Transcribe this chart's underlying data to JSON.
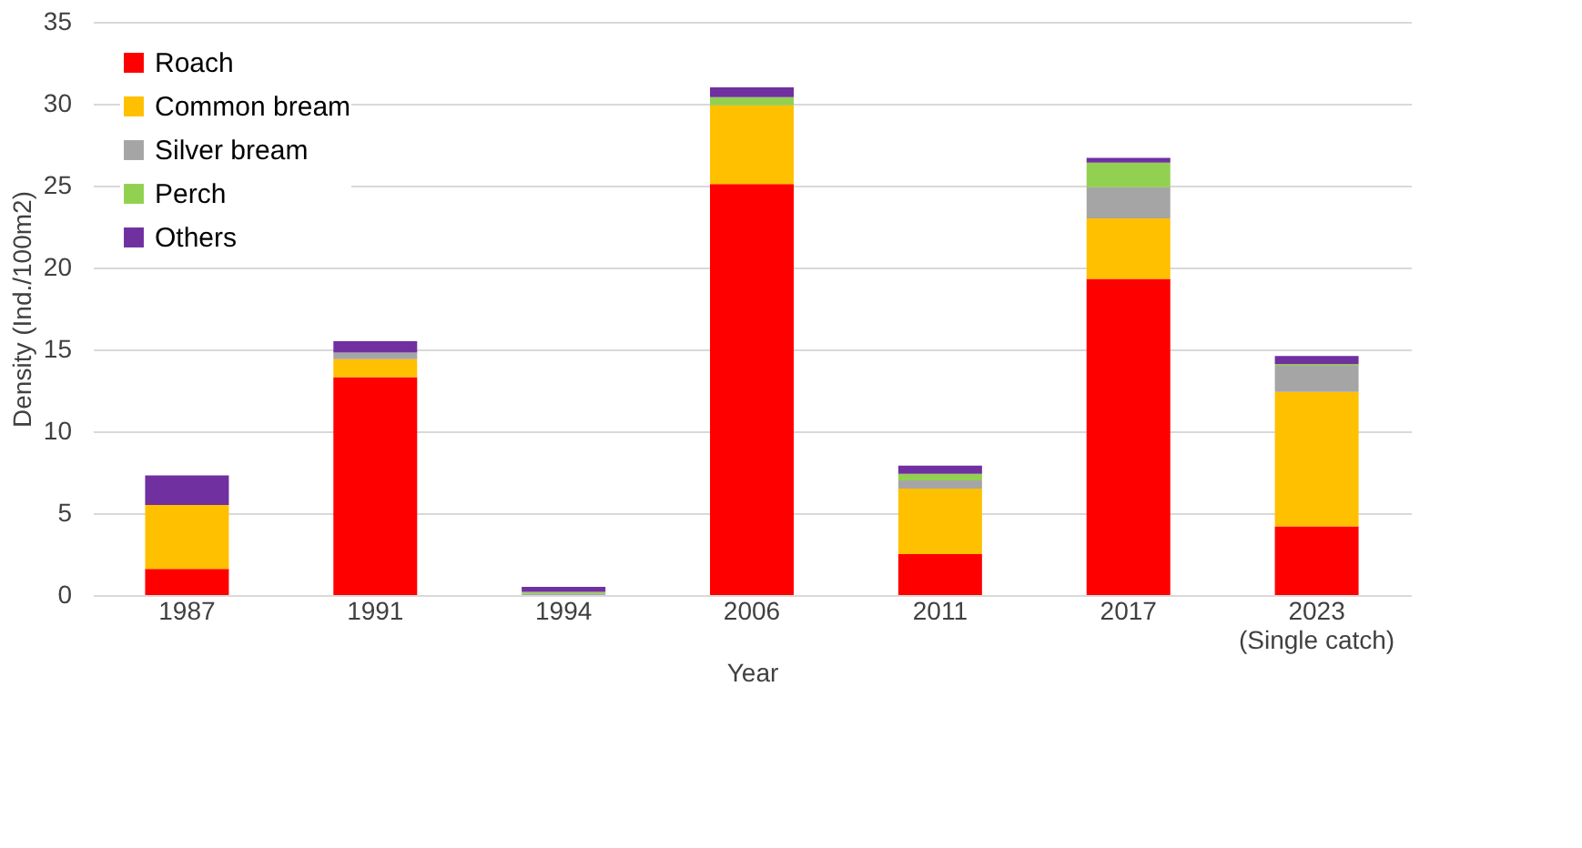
{
  "chart_data": {
    "type": "bar",
    "stacked": true,
    "xlabel": "Year",
    "ylabel": "Density (Ind./100m2)",
    "categories": [
      "1987",
      "1991",
      "1994",
      "2006",
      "2011",
      "2017",
      "2023\n(Single catch)"
    ],
    "series": [
      {
        "name": "Roach",
        "color": "#ff0000",
        "values": [
          1.6,
          13.3,
          0,
          25.1,
          2.5,
          19.3,
          4.2
        ]
      },
      {
        "name": "Common bream",
        "color": "#ffc000",
        "values": [
          3.9,
          1.1,
          0,
          4.8,
          4.0,
          3.7,
          8.2
        ]
      },
      {
        "name": "Silver bream",
        "color": "#a5a5a5",
        "values": [
          null,
          0.4,
          0.1,
          0,
          0.5,
          1.9,
          1.6
        ]
      },
      {
        "name": "Perch",
        "color": "#92d050",
        "values": [
          0,
          0,
          0.1,
          0.5,
          0.4,
          1.5,
          0.1
        ]
      },
      {
        "name": "Others",
        "color": "#7030a0",
        "values": [
          1.8,
          0.7,
          0.3,
          0.6,
          0.5,
          0.3,
          0.5
        ]
      }
    ],
    "ylim": [
      0,
      35
    ],
    "yticks": [
      0,
      5,
      10,
      15,
      20,
      25,
      30,
      35
    ],
    "grid": "y",
    "legend": "top left"
  }
}
